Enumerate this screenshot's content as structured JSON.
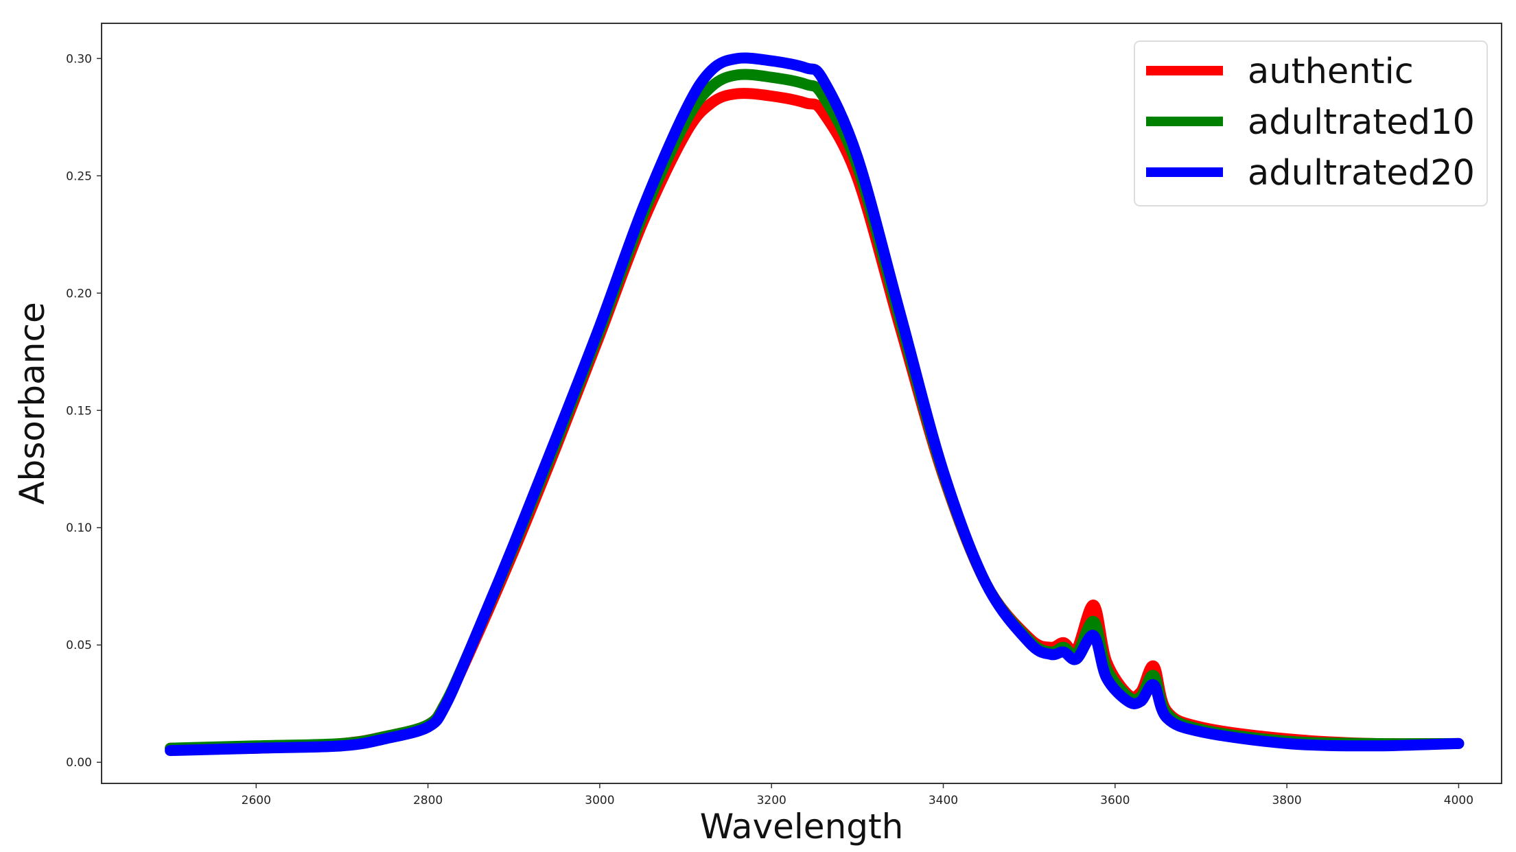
{
  "chart_data": {
    "type": "line",
    "title": "",
    "xlabel": "Wavelength",
    "ylabel": "Absorbance",
    "xlim": [
      2420,
      4050
    ],
    "ylim": [
      -0.009,
      0.315
    ],
    "xticks": [
      2600,
      2800,
      3000,
      3200,
      3400,
      3600,
      3800,
      4000
    ],
    "xtick_labels": [
      "2600",
      "2800",
      "3000",
      "3200",
      "3400",
      "3600",
      "3800",
      "4000"
    ],
    "yticks": [
      0.0,
      0.05,
      0.1,
      0.15,
      0.2,
      0.25,
      0.3
    ],
    "ytick_labels": [
      "0.00",
      "0.05",
      "0.10",
      "0.15",
      "0.20",
      "0.25",
      "0.30"
    ],
    "grid": false,
    "legend_position": "top-right",
    "series": [
      {
        "name": "authentic",
        "color": "#ff0000",
        "x": [
          2500,
          2600,
          2700,
          2750,
          2800,
          2820,
          2850,
          2900,
          2950,
          3000,
          3050,
          3100,
          3130,
          3160,
          3200,
          3240,
          3260,
          3300,
          3350,
          3400,
          3450,
          3500,
          3525,
          3540,
          3555,
          3575,
          3590,
          3615,
          3630,
          3645,
          3660,
          3700,
          3800,
          3900,
          4000
        ],
        "y": [
          0.006,
          0.006,
          0.008,
          0.011,
          0.016,
          0.025,
          0.048,
          0.09,
          0.135,
          0.182,
          0.23,
          0.268,
          0.281,
          0.285,
          0.284,
          0.281,
          0.277,
          0.249,
          0.185,
          0.122,
          0.076,
          0.053,
          0.049,
          0.051,
          0.048,
          0.067,
          0.043,
          0.029,
          0.03,
          0.041,
          0.022,
          0.015,
          0.01,
          0.008,
          0.008
        ]
      },
      {
        "name": "adultrated10",
        "color": "#008000",
        "x": [
          2500,
          2600,
          2700,
          2750,
          2800,
          2820,
          2850,
          2900,
          2950,
          3000,
          3050,
          3100,
          3130,
          3160,
          3200,
          3240,
          3260,
          3300,
          3350,
          3400,
          3450,
          3500,
          3525,
          3540,
          3555,
          3575,
          3590,
          3615,
          3630,
          3645,
          3660,
          3700,
          3800,
          3900,
          4000
        ],
        "y": [
          0.006,
          0.007,
          0.008,
          0.011,
          0.016,
          0.025,
          0.049,
          0.092,
          0.137,
          0.184,
          0.233,
          0.273,
          0.288,
          0.293,
          0.292,
          0.289,
          0.284,
          0.254,
          0.188,
          0.123,
          0.076,
          0.052,
          0.047,
          0.049,
          0.046,
          0.06,
          0.04,
          0.028,
          0.028,
          0.037,
          0.021,
          0.014,
          0.009,
          0.008,
          0.008
        ]
      },
      {
        "name": "adultrated20",
        "color": "#0000ff",
        "x": [
          2500,
          2600,
          2700,
          2750,
          2800,
          2820,
          2850,
          2900,
          2950,
          3000,
          3050,
          3100,
          3130,
          3160,
          3200,
          3240,
          3260,
          3300,
          3350,
          3400,
          3450,
          3500,
          3525,
          3540,
          3555,
          3575,
          3590,
          3615,
          3630,
          3645,
          3660,
          3700,
          3800,
          3900,
          4000
        ],
        "y": [
          0.005,
          0.006,
          0.007,
          0.01,
          0.015,
          0.024,
          0.049,
          0.093,
          0.139,
          0.186,
          0.236,
          0.278,
          0.295,
          0.3,
          0.299,
          0.296,
          0.291,
          0.258,
          0.191,
          0.124,
          0.076,
          0.051,
          0.046,
          0.047,
          0.044,
          0.054,
          0.036,
          0.026,
          0.026,
          0.033,
          0.019,
          0.013,
          0.008,
          0.007,
          0.008
        ]
      }
    ]
  }
}
